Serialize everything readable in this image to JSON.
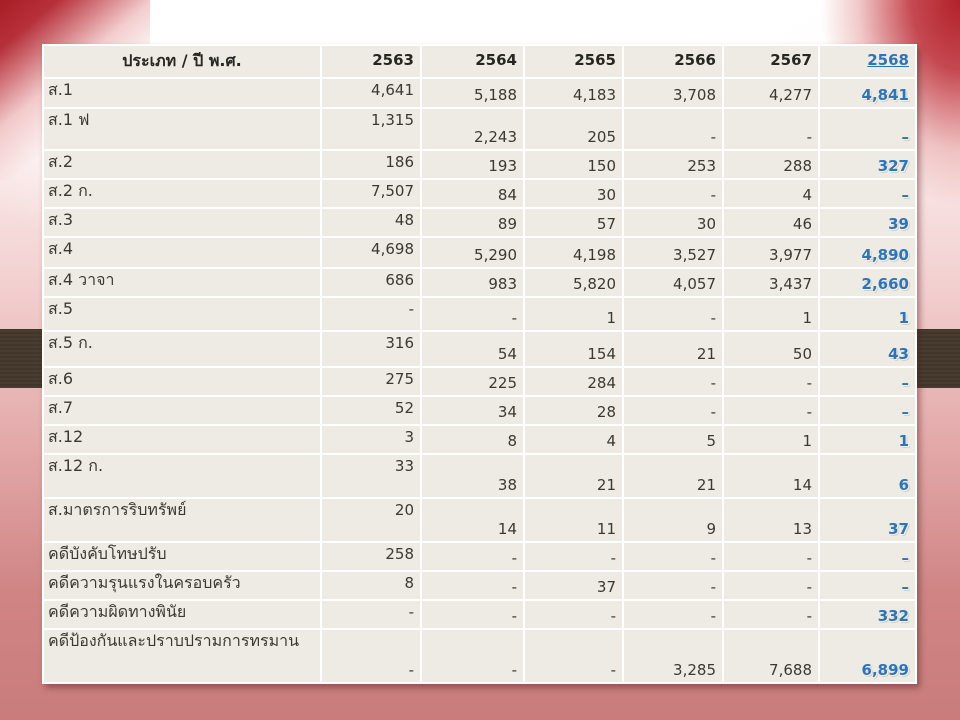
{
  "table": {
    "header_label": "ประเภท / ปี พ.ศ.",
    "year_columns": [
      "2563",
      "2564",
      "2565",
      "2566",
      "2567",
      "2568"
    ],
    "highlight_column": "2568",
    "rows": [
      {
        "label": "ส.1",
        "values": [
          "4,641",
          "5,188",
          "4,183",
          "3,708",
          "4,277",
          "4,841"
        ]
      },
      {
        "label": "ส.1 ฟ",
        "values": [
          "1,315",
          "2,243",
          "205",
          "-",
          "-",
          "–"
        ]
      },
      {
        "label": "ส.2",
        "values": [
          "186",
          "193",
          "150",
          "253",
          "288",
          "327"
        ]
      },
      {
        "label": "ส.2 ก.",
        "values": [
          "7,507",
          "84",
          "30",
          "-",
          "4",
          "–"
        ]
      },
      {
        "label": "ส.3",
        "values": [
          "48",
          "89",
          "57",
          "30",
          "46",
          "39"
        ]
      },
      {
        "label": "ส.4",
        "values": [
          "4,698",
          "5,290",
          "4,198",
          "3,527",
          "3,977",
          "4,890"
        ]
      },
      {
        "label": "ส.4 วาจา",
        "values": [
          "686",
          "983",
          "5,820",
          "4,057",
          "3,437",
          "2,660"
        ]
      },
      {
        "label": "ส.5",
        "values": [
          "-",
          "-",
          "1",
          "-",
          "1",
          "1"
        ]
      },
      {
        "label": "ส.5 ก.",
        "values": [
          "316",
          "54",
          "154",
          "21",
          "50",
          "43"
        ]
      },
      {
        "label": "ส.6",
        "values": [
          "275",
          "225",
          "284",
          "-",
          "-",
          "–"
        ]
      },
      {
        "label": "ส.7",
        "values": [
          "52",
          "34",
          "28",
          "-",
          "-",
          "–"
        ]
      },
      {
        "label": "ส.12",
        "values": [
          "3",
          "8",
          "4",
          "5",
          "1",
          "1"
        ]
      },
      {
        "label": "ส.12 ก.",
        "values": [
          "33",
          "38",
          "21",
          "21",
          "14",
          "6"
        ]
      },
      {
        "label": "ส.มาตรการริบทรัพย์",
        "values": [
          "20",
          "14",
          "11",
          "9",
          "13",
          "37"
        ]
      },
      {
        "label": "คดีบังคับโทษปรับ",
        "values": [
          "258",
          "-",
          "-",
          "-",
          "-",
          "–"
        ]
      },
      {
        "label": "คดีความรุนแรงในครอบครัว",
        "values": [
          "8",
          "-",
          "37",
          "-",
          "-",
          "–"
        ]
      },
      {
        "label": "คดีความผิดทางพินัย",
        "values": [
          "-",
          "-",
          "-",
          "-",
          "-",
          "332"
        ]
      },
      {
        "label": "คดีป้องกันและปราบปรามการทรมาน",
        "values": [
          "-",
          "-",
          "-",
          "3,285",
          "7,688",
          "6,899"
        ]
      }
    ]
  },
  "colors": {
    "highlight_blue": "#2e74b6",
    "cell_background": "#edebe3",
    "band_brown": "#453a2d",
    "accent_red": "#b01e27",
    "background_salmon": "#ca7c7c"
  }
}
